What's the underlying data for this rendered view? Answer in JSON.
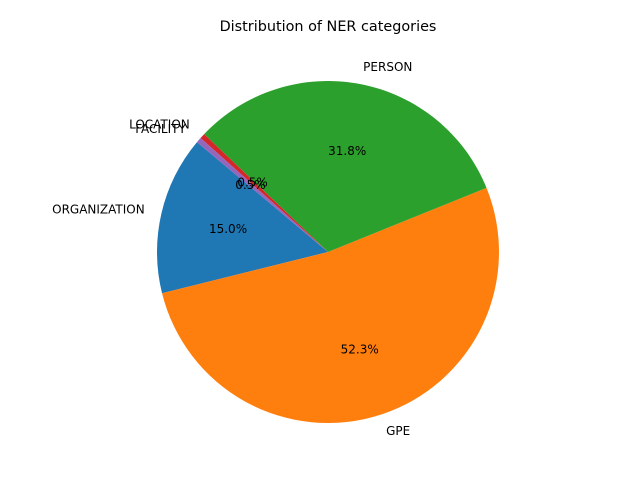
{
  "chart_data": {
    "type": "pie",
    "title": "Distribution of NER categories",
    "legend": "none",
    "start_angle_deg": 140,
    "direction": "counterclockwise",
    "slices": [
      {
        "label": "ORGANIZATION",
        "value": 15.0,
        "pct_text": "15.0%",
        "color": "#1f77b4"
      },
      {
        "label": "GPE",
        "value": 52.3,
        "pct_text": "52.3%",
        "color": "#ff7f0e"
      },
      {
        "label": "PERSON",
        "value": 31.8,
        "pct_text": "31.8%",
        "color": "#2ca02c"
      },
      {
        "label": "LOCATION",
        "value": 0.5,
        "pct_text": "0.5%",
        "color": "#d62728"
      },
      {
        "label": "FACILITY",
        "value": 0.5,
        "pct_text": "0.5%",
        "color": "#9467bd"
      }
    ]
  }
}
